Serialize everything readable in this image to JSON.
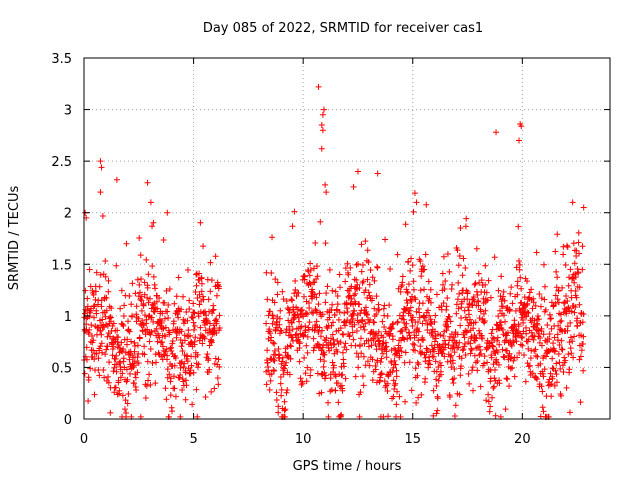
{
  "chart_data": {
    "type": "scatter",
    "title": "Day 085 of 2022, SRMTID for receiver cas1",
    "xlabel": "GPS time / hours",
    "ylabel": "SRMTID / TECUs",
    "xlim": [
      0,
      24
    ],
    "ylim": [
      0,
      3.5
    ],
    "xticks": [
      0,
      5,
      10,
      15,
      20
    ],
    "xtick_labels": [
      "0",
      "5",
      "10",
      "15",
      "20"
    ],
    "yticks": [
      0,
      0.5,
      1,
      1.5,
      2,
      2.5,
      3,
      3.5
    ],
    "ytick_labels": [
      "0",
      "0.5",
      "1",
      "1.5",
      "2",
      "2.5",
      "3",
      "3.5"
    ],
    "grid": true,
    "marker": "+",
    "color": "#ff0000",
    "series": [
      {
        "name": "SRMTID",
        "segments": [
          {
            "x_start": 0.0,
            "x_end": 6.2,
            "points": 620,
            "mean": 0.75,
            "spread": 0.35
          },
          {
            "x_start": 8.3,
            "x_end": 22.8,
            "points": 1500,
            "mean": 0.8,
            "spread": 0.38
          }
        ],
        "notable_points": [
          {
            "x": 10.7,
            "y": 3.22
          },
          {
            "x": 10.95,
            "y": 3.0
          },
          {
            "x": 10.9,
            "y": 2.95
          },
          {
            "x": 10.85,
            "y": 2.85
          },
          {
            "x": 10.9,
            "y": 2.8
          },
          {
            "x": 10.85,
            "y": 2.62
          },
          {
            "x": 19.9,
            "y": 2.86
          },
          {
            "x": 19.95,
            "y": 2.84
          },
          {
            "x": 19.85,
            "y": 2.7
          },
          {
            "x": 18.8,
            "y": 2.78
          },
          {
            "x": 0.75,
            "y": 2.5
          },
          {
            "x": 0.8,
            "y": 2.44
          },
          {
            "x": 0.75,
            "y": 2.2
          },
          {
            "x": 1.5,
            "y": 2.32
          },
          {
            "x": 2.9,
            "y": 2.29
          },
          {
            "x": 13.4,
            "y": 2.38
          },
          {
            "x": 12.5,
            "y": 2.4
          },
          {
            "x": 12.3,
            "y": 2.25
          },
          {
            "x": 15.1,
            "y": 2.19
          },
          {
            "x": 22.8,
            "y": 2.05
          },
          {
            "x": 0.05,
            "y": 2.0
          },
          {
            "x": 0.1,
            "y": 1.95
          },
          {
            "x": 3.8,
            "y": 2.0
          },
          {
            "x": 9.6,
            "y": 2.01
          },
          {
            "x": 11.0,
            "y": 2.27
          },
          {
            "x": 11.05,
            "y": 2.2
          }
        ]
      }
    ]
  }
}
